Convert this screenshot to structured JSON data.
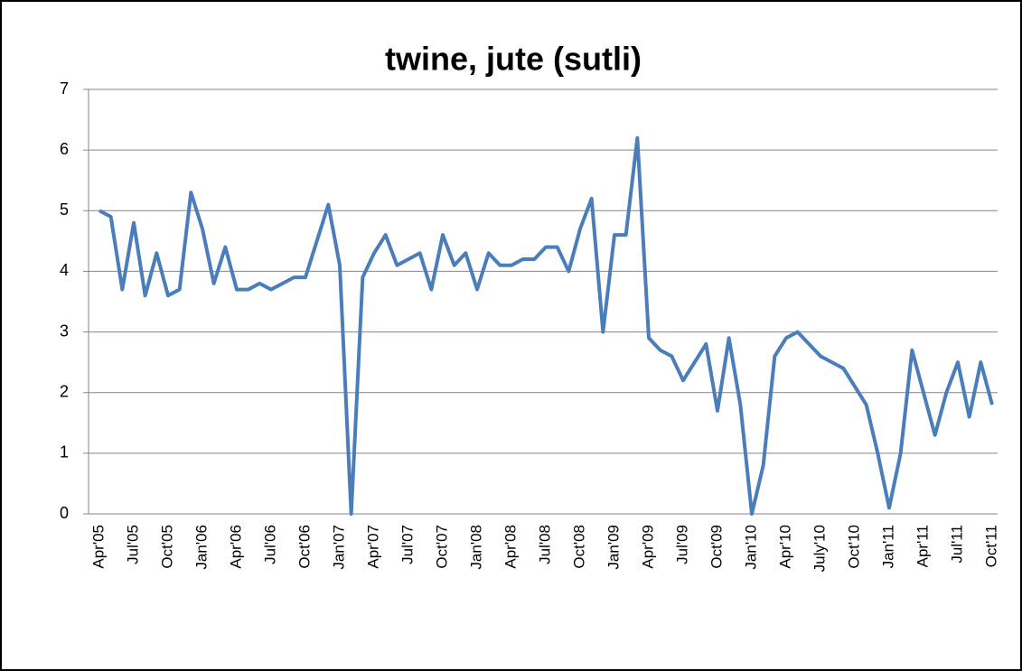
{
  "chart_data": {
    "type": "line",
    "title": "twine, jute (sutli)",
    "categories": [
      "Apr'05",
      null,
      null,
      "Jul'05",
      null,
      null,
      "Oct'05",
      null,
      null,
      "Jan'06",
      null,
      null,
      "Apr'06",
      null,
      null,
      "Jul'06",
      null,
      null,
      "Oct'06",
      null,
      null,
      "Jan'07",
      null,
      null,
      "Apr'07",
      null,
      null,
      "Jul'07",
      null,
      null,
      "Oct'07",
      null,
      null,
      "Jan'08",
      null,
      null,
      "Apr'08",
      null,
      null,
      "Jul'08",
      null,
      null,
      "Oct'08",
      null,
      null,
      "Jan'09",
      null,
      null,
      "Apr'09",
      null,
      null,
      "Jul'09",
      null,
      null,
      "Oct'09",
      null,
      null,
      "Jan'10",
      null,
      null,
      "Apr'10",
      null,
      null,
      "July'10",
      null,
      null,
      "Oct'10",
      null,
      null,
      "Jan'11",
      null,
      null,
      "Apr'11",
      null,
      null,
      "Jul'11",
      null,
      null,
      "Oct'11"
    ],
    "series": [
      {
        "name": "twine, jute (sutli)",
        "color": "#4a7ebb",
        "values": [
          5.0,
          4.9,
          3.7,
          4.8,
          3.6,
          4.3,
          3.6,
          3.7,
          5.3,
          4.7,
          3.8,
          4.4,
          3.7,
          3.7,
          3.8,
          3.7,
          3.8,
          3.9,
          3.9,
          4.5,
          5.1,
          4.1,
          0,
          3.9,
          4.3,
          4.6,
          4.1,
          4.2,
          4.3,
          3.7,
          4.6,
          4.1,
          4.3,
          3.7,
          4.3,
          4.1,
          4.1,
          4.2,
          4.2,
          4.4,
          4.4,
          4.0,
          4.7,
          5.2,
          3.0,
          4.6,
          4.6,
          6.2,
          2.9,
          2.7,
          2.6,
          2.2,
          2.5,
          2.8,
          1.7,
          2.9,
          1.8,
          0,
          0.8,
          2.6,
          2.9,
          3.0,
          2.8,
          2.6,
          2.5,
          2.4,
          2.1,
          1.8,
          1.0,
          0.1,
          1.0,
          2.7,
          2.0,
          1.3,
          2.0,
          2.5,
          1.6,
          2.5,
          1.8
        ]
      }
    ],
    "ylim": [
      0,
      7
    ],
    "yticks": [
      0,
      1,
      2,
      3,
      4,
      5,
      6,
      7
    ],
    "grid": true
  }
}
